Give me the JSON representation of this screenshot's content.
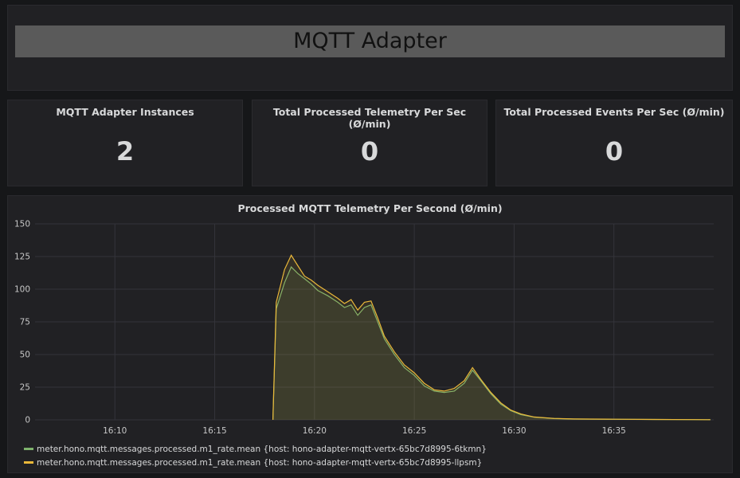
{
  "header": {
    "title": "MQTT Adapter"
  },
  "stats": [
    {
      "title": "MQTT Adapter Instances",
      "value": "2"
    },
    {
      "title": "Total Processed Telemetry Per Sec (Ø/min)",
      "value": "0"
    },
    {
      "title": "Total Processed Events Per Sec  (Ø/min)",
      "value": "0"
    }
  ],
  "chart": {
    "title": "Processed MQTT Telemetry Per Second (Ø/min)"
  },
  "chart_data": {
    "type": "line",
    "title": "Processed MQTT Telemetry Per Second (Ø/min)",
    "xlabel": "",
    "ylabel": "",
    "xlim": [
      "16:06",
      "16:40"
    ],
    "ylim": [
      0,
      150
    ],
    "y_ticks": [
      "150",
      "125",
      "100",
      "75",
      "50",
      "25",
      "0"
    ],
    "x_ticks": [
      "16:10",
      "16:15",
      "16:20",
      "16:25",
      "16:30",
      "16:35"
    ],
    "grid": true,
    "legend_position": "bottom",
    "series": [
      {
        "name": "meter.hono.mqtt.messages.processed.m1_rate.mean {host: hono-adapter-mqtt-vertx-65bc7d8995-6tkmn}",
        "color": "#7eb26d",
        "x": [
          "16:17:55",
          "16:18:05",
          "16:18:30",
          "16:18:50",
          "16:19:10",
          "16:19:30",
          "16:19:50",
          "16:20:10",
          "16:20:40",
          "16:21:10",
          "16:21:30",
          "16:21:50",
          "16:22:10",
          "16:22:30",
          "16:22:50",
          "16:23:10",
          "16:23:30",
          "16:24:00",
          "16:24:30",
          "16:25:00",
          "16:25:30",
          "16:26:00",
          "16:26:30",
          "16:27:00",
          "16:27:30",
          "16:27:55",
          "16:28:20",
          "16:28:50",
          "16:29:20",
          "16:29:50",
          "16:30:20",
          "16:31:00",
          "16:32:00",
          "16:33:00",
          "16:35:00",
          "16:37:00",
          "16:39:00",
          "16:39:50"
        ],
        "values": [
          0,
          85,
          105,
          117,
          112,
          108,
          104,
          99,
          95,
          90,
          86,
          88,
          80,
          86,
          88,
          75,
          62,
          50,
          40,
          34,
          26,
          22,
          21,
          22,
          28,
          38,
          30,
          20,
          12,
          7,
          4,
          2,
          1,
          0.6,
          0.4,
          0.3,
          0.2,
          0.1
        ]
      },
      {
        "name": "meter.hono.mqtt.messages.processed.m1_rate.mean {host: hono-adapter-mqtt-vertx-65bc7d8995-llpsm}",
        "color": "#eab839",
        "x": [
          "16:17:55",
          "16:18:05",
          "16:18:30",
          "16:18:50",
          "16:19:10",
          "16:19:30",
          "16:19:50",
          "16:20:10",
          "16:20:40",
          "16:21:10",
          "16:21:30",
          "16:21:50",
          "16:22:10",
          "16:22:30",
          "16:22:50",
          "16:23:10",
          "16:23:30",
          "16:24:00",
          "16:24:30",
          "16:25:00",
          "16:25:30",
          "16:26:00",
          "16:26:30",
          "16:27:00",
          "16:27:30",
          "16:27:55",
          "16:28:20",
          "16:28:50",
          "16:29:20",
          "16:29:50",
          "16:30:20",
          "16:31:00",
          "16:32:00",
          "16:33:00",
          "16:35:00",
          "16:37:00",
          "16:39:00",
          "16:39:50"
        ],
        "values": [
          0,
          90,
          115,
          126,
          118,
          110,
          107,
          103,
          98,
          93,
          89,
          92,
          84,
          90,
          91,
          78,
          64,
          52,
          42,
          36,
          28,
          23,
          22,
          24,
          30,
          40,
          31,
          21,
          13,
          7.5,
          4.5,
          2.2,
          1.1,
          0.7,
          0.5,
          0.3,
          0.2,
          0.1
        ]
      }
    ]
  }
}
